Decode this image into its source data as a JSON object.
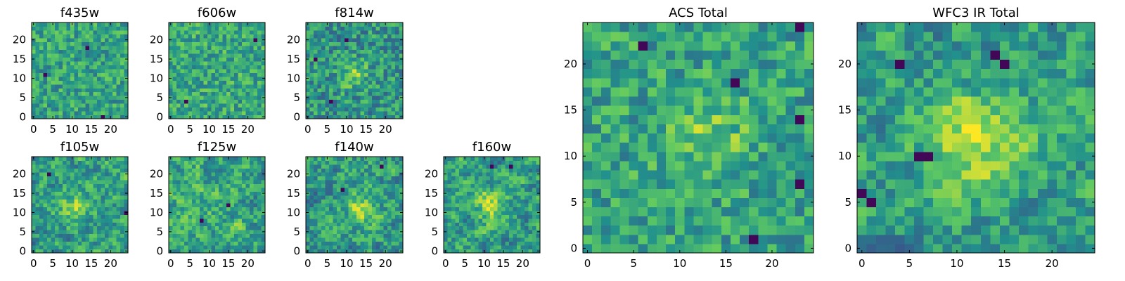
{
  "figure": {
    "colormap": "viridis",
    "colors": [
      "#440154",
      "#3b528b",
      "#21918c",
      "#5ec962",
      "#fde725"
    ]
  },
  "chart_data": [
    {
      "type": "heatmap",
      "title": "f435w",
      "shape": [
        25,
        25
      ],
      "seed": 11,
      "smooth": 0,
      "blobs": [],
      "darks": [
        [
          18,
          0
        ],
        [
          14,
          18
        ],
        [
          3,
          11
        ]
      ],
      "mean": 0.58,
      "spread": 0.2,
      "xticks": [
        0,
        5,
        10,
        15,
        20
      ],
      "yticks": [
        0,
        5,
        10,
        15,
        20
      ],
      "xlim": [
        -0.5,
        24.5
      ],
      "ylim": [
        -0.5,
        24.5
      ]
    },
    {
      "type": "heatmap",
      "title": "f606w",
      "shape": [
        25,
        25
      ],
      "seed": 23,
      "smooth": 0,
      "blobs": [],
      "darks": [
        [
          4,
          4
        ],
        [
          22,
          20
        ]
      ],
      "mean": 0.6,
      "spread": 0.2,
      "xticks": [
        0,
        5,
        10,
        15,
        20
      ],
      "yticks": [
        0,
        5,
        10,
        15,
        20
      ],
      "xlim": [
        -0.5,
        24.5
      ],
      "ylim": [
        -0.5,
        24.5
      ]
    },
    {
      "type": "heatmap",
      "title": "f814w",
      "shape": [
        25,
        25
      ],
      "seed": 37,
      "smooth": 0,
      "blobs": [
        [
          12,
          11,
          2.5,
          0.25
        ]
      ],
      "darks": [
        [
          6,
          4
        ],
        [
          10,
          20
        ],
        [
          2,
          15
        ]
      ],
      "mean": 0.52,
      "spread": 0.22,
      "xticks": [
        0,
        5,
        10,
        15,
        20
      ],
      "yticks": [
        0,
        5,
        10,
        15,
        20
      ],
      "xlim": [
        -0.5,
        24.5
      ],
      "ylim": [
        -0.5,
        24.5
      ]
    },
    {
      "type": "heatmap",
      "title": "f105w",
      "shape": [
        25,
        25
      ],
      "seed": 41,
      "smooth": 1,
      "blobs": [
        [
          11,
          12,
          3,
          0.25
        ]
      ],
      "darks": [
        [
          24,
          10
        ],
        [
          4,
          20
        ]
      ],
      "mean": 0.55,
      "spread": 0.22,
      "xticks": [
        0,
        5,
        10,
        15,
        20
      ],
      "yticks": [
        0,
        5,
        10,
        15,
        20
      ],
      "xlim": [
        -0.5,
        24.5
      ],
      "ylim": [
        -0.5,
        24.5
      ]
    },
    {
      "type": "heatmap",
      "title": "f125w",
      "shape": [
        25,
        25
      ],
      "seed": 53,
      "smooth": 1,
      "blobs": [],
      "darks": [
        [
          8,
          8
        ],
        [
          15,
          12
        ]
      ],
      "mean": 0.6,
      "spread": 0.22,
      "xticks": [
        0,
        5,
        10,
        15,
        20
      ],
      "yticks": [
        0,
        5,
        10,
        15,
        20
      ],
      "xlim": [
        -0.5,
        24.5
      ],
      "ylim": [
        -0.5,
        24.5
      ]
    },
    {
      "type": "heatmap",
      "title": "f140w",
      "shape": [
        25,
        25
      ],
      "seed": 67,
      "smooth": 1,
      "blobs": [
        [
          14,
          11,
          3,
          0.25
        ]
      ],
      "darks": [
        [
          9,
          16
        ],
        [
          19,
          22
        ]
      ],
      "mean": 0.55,
      "spread": 0.22,
      "xticks": [
        0,
        5,
        10,
        15,
        20
      ],
      "yticks": [
        0,
        5,
        10,
        15,
        20
      ],
      "xlim": [
        -0.5,
        24.5
      ],
      "ylim": [
        -0.5,
        24.5
      ]
    },
    {
      "type": "heatmap",
      "title": "f160w",
      "shape": [
        25,
        25
      ],
      "seed": 71,
      "smooth": 1,
      "blobs": [
        [
          12,
          12,
          3,
          0.3
        ]
      ],
      "darks": [
        [
          12,
          22
        ],
        [
          17,
          22
        ]
      ],
      "mean": 0.55,
      "spread": 0.22,
      "xticks": [
        0,
        5,
        10,
        15,
        20
      ],
      "yticks": [
        0,
        5,
        10,
        15,
        20
      ],
      "xlim": [
        -0.5,
        24.5
      ],
      "ylim": [
        -0.5,
        24.5
      ]
    },
    {
      "type": "heatmap",
      "title": "ACS Total",
      "shape": [
        25,
        25
      ],
      "seed": 83,
      "smooth": 0,
      "blobs": [
        [
          13,
          12,
          3,
          0.2
        ]
      ],
      "darks": [
        [
          23,
          24
        ],
        [
          6,
          22
        ],
        [
          16,
          18
        ],
        [
          18,
          1
        ],
        [
          23,
          7
        ],
        [
          23,
          14
        ]
      ],
      "mean": 0.58,
      "spread": 0.2,
      "xticks": [
        0,
        5,
        10,
        15,
        20
      ],
      "yticks": [
        0,
        5,
        10,
        15,
        20
      ],
      "xlim": [
        -0.5,
        24.5
      ],
      "ylim": [
        -0.5,
        24.5
      ]
    },
    {
      "type": "heatmap",
      "title": "WFC3 IR Total",
      "shape": [
        25,
        25
      ],
      "seed": 97,
      "smooth": 1,
      "blobs": [
        [
          12,
          12,
          3.5,
          0.35
        ]
      ],
      "darks": [
        [
          0,
          6
        ],
        [
          1,
          5
        ],
        [
          6,
          10
        ],
        [
          7,
          10
        ],
        [
          14,
          21
        ],
        [
          15,
          20
        ],
        [
          4,
          20
        ]
      ],
      "mean": 0.55,
      "spread": 0.2,
      "xticks": [
        0,
        5,
        10,
        15,
        20
      ],
      "yticks": [
        0,
        5,
        10,
        15,
        20
      ],
      "xlim": [
        -0.5,
        24.5
      ],
      "ylim": [
        -0.5,
        24.5
      ]
    }
  ]
}
